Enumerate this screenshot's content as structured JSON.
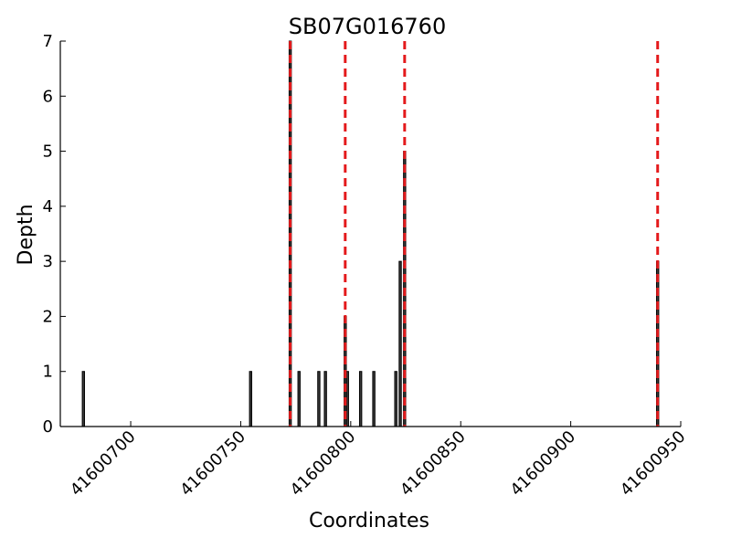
{
  "chart_data": {
    "type": "bar",
    "title": "SB07G016760",
    "xlabel": "Coordinates",
    "ylabel": "Depth",
    "xlim": [
      41600668,
      41600950
    ],
    "ylim": [
      0,
      7
    ],
    "x_ticks": [
      41600700,
      41600750,
      41600800,
      41600850,
      41600900,
      41600950
    ],
    "y_ticks": [
      0,
      1,
      2,
      3,
      4,
      5,
      6,
      7
    ],
    "bars": [
      {
        "x": 41600678,
        "y": 1
      },
      {
        "x": 41600754,
        "y": 1
      },
      {
        "x": 41600772,
        "y": 7
      },
      {
        "x": 41600776,
        "y": 1
      },
      {
        "x": 41600785,
        "y": 1
      },
      {
        "x": 41600788,
        "y": 1
      },
      {
        "x": 41600797,
        "y": 2
      },
      {
        "x": 41600798,
        "y": 1
      },
      {
        "x": 41600804,
        "y": 1
      },
      {
        "x": 41600810,
        "y": 1
      },
      {
        "x": 41600820,
        "y": 1
      },
      {
        "x": 41600822,
        "y": 3
      },
      {
        "x": 41600824,
        "y": 5
      },
      {
        "x": 41600939,
        "y": 3
      }
    ],
    "vlines": [
      41600772,
      41600797,
      41600824,
      41600939
    ],
    "bar_width": 1,
    "bar_color": "#3a3a3a",
    "vline_color": "#e41a1c",
    "grid": false,
    "legend": "none"
  }
}
